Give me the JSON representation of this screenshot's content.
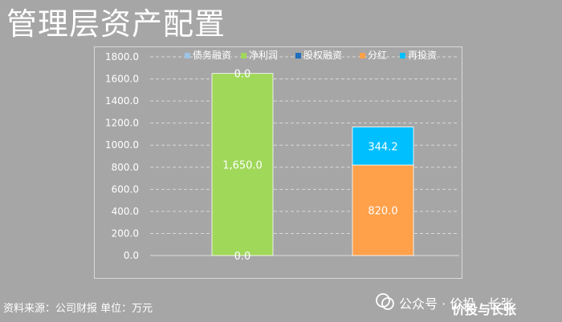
{
  "title": "管理层资产配置",
  "source_note": "资料来源：公司财报 单位：万元",
  "watermark": {
    "text": "公众号 · 价投 · 长张",
    "subtext": "价投与长张"
  },
  "colors": {
    "background": "#a6a6a6",
    "gridline": "#d9d9d9",
    "axis_text": "#ffffff",
    "series_debt": "#9dc3e6",
    "series_net_profit": "#a0d85a",
    "series_equity": "#1f6fbf",
    "series_dividend": "#ffa04a",
    "series_reinvest": "#00bfff"
  },
  "chart_data": {
    "type": "bar",
    "stacked": true,
    "title": "",
    "xlabel": "",
    "ylabel": "",
    "ylim": [
      0,
      1800
    ],
    "yticks": [
      "0.0",
      "200.0",
      "400.0",
      "600.0",
      "800.0",
      "1000.0",
      "1200.0",
      "1400.0",
      "1600.0",
      "1800.0"
    ],
    "ytick_values": [
      0,
      200,
      400,
      600,
      800,
      1000,
      1200,
      1400,
      1600,
      1800
    ],
    "grid": true,
    "legend_position": "top",
    "categories": [
      "",
      ""
    ],
    "series": [
      {
        "name": "债务融资",
        "values": [
          0,
          null
        ],
        "labels": [
          "0.0",
          null
        ],
        "color": "#9dc3e6"
      },
      {
        "name": "净利润",
        "values": [
          1650,
          null
        ],
        "labels": [
          "1,650.0",
          null
        ],
        "color": "#a0d85a"
      },
      {
        "name": "股权融资",
        "values": [
          0,
          null
        ],
        "labels": [
          "0.0",
          null
        ],
        "color": "#1f6fbf"
      },
      {
        "name": "分红",
        "values": [
          null,
          820
        ],
        "labels": [
          null,
          "820.0"
        ],
        "color": "#ffa04a"
      },
      {
        "name": "再投资",
        "values": [
          null,
          344.2
        ],
        "labels": [
          null,
          "344.2"
        ],
        "color": "#00bfff"
      }
    ]
  }
}
